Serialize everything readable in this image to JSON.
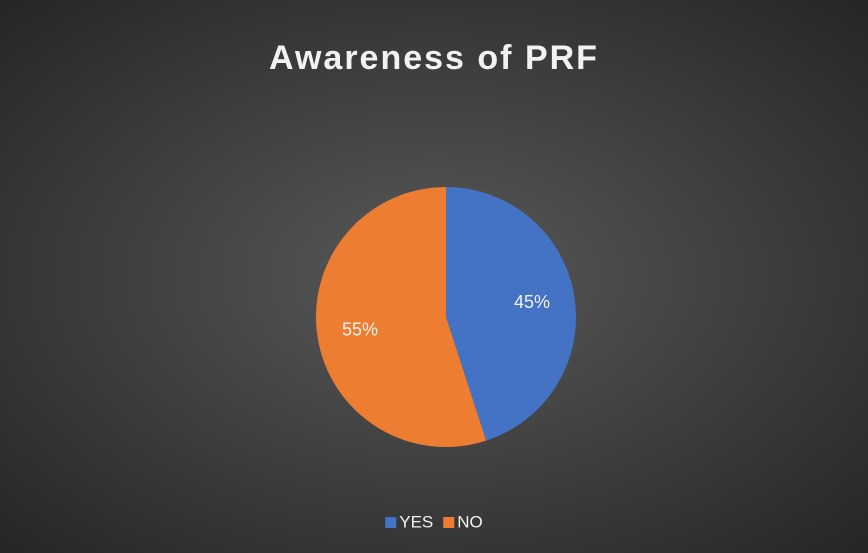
{
  "chart_data": {
    "type": "pie",
    "title": "Awareness of PRF",
    "categories": [
      "YES",
      "NO"
    ],
    "values": [
      45,
      55
    ],
    "value_labels": [
      "45%",
      "55%"
    ],
    "colors": [
      "#4472c4",
      "#ed7d31"
    ],
    "legend": "bottom"
  }
}
